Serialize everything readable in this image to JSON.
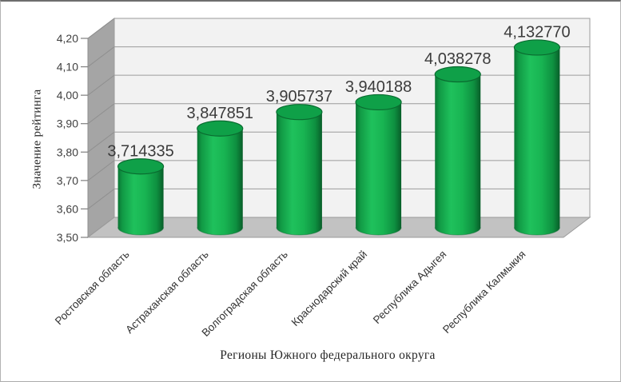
{
  "window": {
    "background": "#ffffff",
    "border_color": "#6E6E6E"
  },
  "chart_data": {
    "type": "bar",
    "subtype": "3d-cylinder",
    "title": "",
    "xlabel": "Регионы Южного федерального округа",
    "ylabel": "Значение рейтинга",
    "categories": [
      "Ростовская область",
      "Астраханская область",
      "Волгоградская область",
      "Краснодарский край",
      "Республика Адыгея",
      "Республика Калмыкия"
    ],
    "values": [
      3.714335,
      3.847851,
      3.905737,
      3.940188,
      4.038278,
      4.13277
    ],
    "value_labels": [
      "3,714335",
      "3,847851",
      "3,905737",
      "3,940188",
      "4,038278",
      "4,132770"
    ],
    "ylim": [
      3.5,
      4.2
    ],
    "ytick_step": 0.1,
    "ytick_labels": [
      "3,50",
      "3,60",
      "3,70",
      "3,80",
      "3,90",
      "4,00",
      "4,10",
      "4,20"
    ],
    "grid": true,
    "legend": false,
    "colors": {
      "bar": "#12A94E",
      "bar_dark": "#0B7534",
      "bar_light": "#1FC15C",
      "bar_top": "#0FA048",
      "bar_rim": "#0A6B30",
      "back_wall": "#F2F2F2",
      "side_wall": "#A5A5A5",
      "floor": "#C2C2C2",
      "gridline": "#9B9B9B",
      "tick_text": "#404040",
      "label_text": "#3B3B3B"
    }
  }
}
